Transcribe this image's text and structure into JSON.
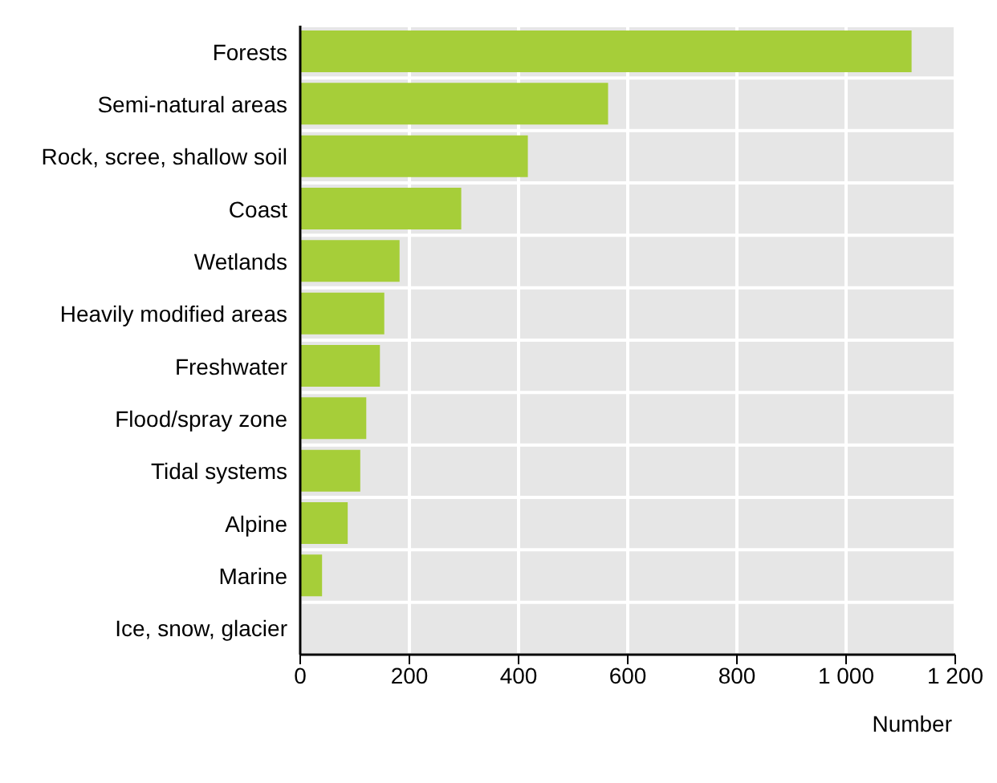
{
  "chart_data": {
    "type": "bar",
    "orientation": "horizontal",
    "xlabel": "Number",
    "categories": [
      "Forests",
      "Semi-natural areas",
      "Rock, scree, shallow soil",
      "Coast",
      "Wetlands",
      "Heavily modified areas",
      "Freshwater",
      "Flood/spray zone",
      "Tidal systems",
      "Alpine",
      "Marine",
      "Ice, snow, glacier"
    ],
    "values": [
      1120,
      564,
      417,
      295,
      182,
      154,
      146,
      121,
      110,
      87,
      40,
      0
    ],
    "color": "#a6ce39",
    "xlim": [
      0,
      1200
    ],
    "xticks": [
      0,
      200,
      400,
      600,
      800,
      {
        "value": 1000,
        "label": "1 000"
      },
      {
        "value": 1200,
        "label": "1 200"
      }
    ],
    "grid": true,
    "legend": false
  }
}
